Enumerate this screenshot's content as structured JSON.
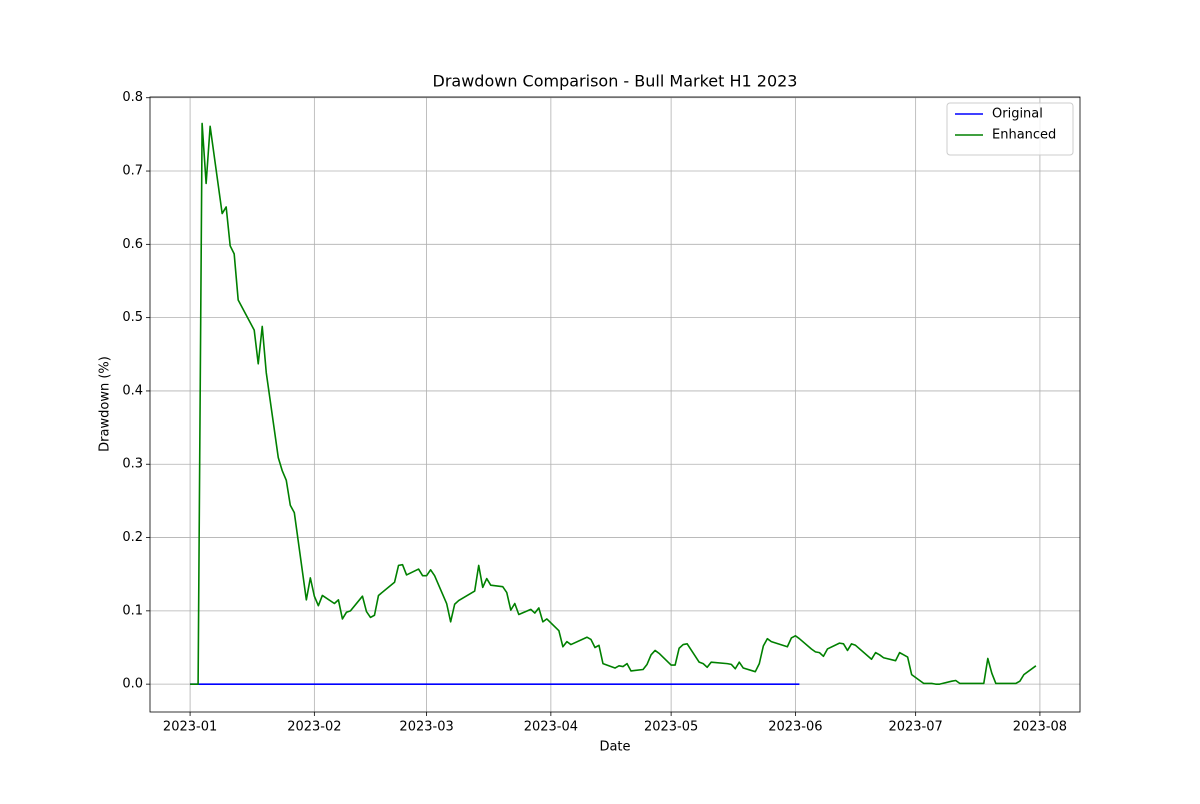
{
  "chart_data": {
    "type": "line",
    "title": "Drawdown Comparison - Bull Market H1 2023",
    "xlabel": "Date",
    "ylabel": "Drawdown (%)",
    "grid": true,
    "legend": "upper right",
    "xlim": [
      "2022-12-22",
      "2023-08-11"
    ],
    "xticks": [
      {
        "value": "2023-01-01",
        "label": "2023-01"
      },
      {
        "value": "2023-02-01",
        "label": "2023-02"
      },
      {
        "value": "2023-03-01",
        "label": "2023-03"
      },
      {
        "value": "2023-04-01",
        "label": "2023-04"
      },
      {
        "value": "2023-05-01",
        "label": "2023-05"
      },
      {
        "value": "2023-06-01",
        "label": "2023-06"
      },
      {
        "value": "2023-07-01",
        "label": "2023-07"
      },
      {
        "value": "2023-08-01",
        "label": "2023-08"
      }
    ],
    "ylim": [
      -0.038,
      0.801
    ],
    "yticks": [
      {
        "value": 0,
        "label": "0.0"
      },
      0.1,
      0.2,
      0.3,
      0.4,
      0.5,
      0.6,
      0.7,
      0.8
    ],
    "x": [
      "2023-01-01",
      "2023-01-03",
      "2023-01-04",
      "2023-01-05",
      "2023-01-06",
      "2023-01-09",
      "2023-01-10",
      "2023-01-11",
      "2023-01-12",
      "2023-01-13",
      "2023-01-17",
      "2023-01-18",
      "2023-01-19",
      "2023-01-20",
      "2023-01-23",
      "2023-01-24",
      "2023-01-25",
      "2023-01-26",
      "2023-01-27",
      "2023-01-30",
      "2023-01-31",
      "2023-02-01",
      "2023-02-02",
      "2023-02-03",
      "2023-02-06",
      "2023-02-07",
      "2023-02-08",
      "2023-02-09",
      "2023-02-10",
      "2023-02-13",
      "2023-02-14",
      "2023-02-15",
      "2023-02-16",
      "2023-02-17",
      "2023-02-21",
      "2023-02-22",
      "2023-02-23",
      "2023-02-24",
      "2023-02-27",
      "2023-02-28",
      "2023-03-01",
      "2023-03-02",
      "2023-03-03",
      "2023-03-06",
      "2023-03-07",
      "2023-03-08",
      "2023-03-09",
      "2023-03-13",
      "2023-03-14",
      "2023-03-15",
      "2023-03-16",
      "2023-03-17",
      "2023-03-20",
      "2023-03-21",
      "2023-03-22",
      "2023-03-23",
      "2023-03-24",
      "2023-03-27",
      "2023-03-28",
      "2023-03-29",
      "2023-03-30",
      "2023-03-31",
      "2023-04-03",
      "2023-04-04",
      "2023-04-05",
      "2023-04-06",
      "2023-04-10",
      "2023-04-11",
      "2023-04-12",
      "2023-04-13",
      "2023-04-14",
      "2023-04-17",
      "2023-04-18",
      "2023-04-19",
      "2023-04-20",
      "2023-04-21",
      "2023-04-24",
      "2023-04-25",
      "2023-04-26",
      "2023-04-27",
      "2023-04-28",
      "2023-05-01",
      "2023-05-02",
      "2023-05-03",
      "2023-05-04",
      "2023-05-05",
      "2023-05-08",
      "2023-05-09",
      "2023-05-10",
      "2023-05-11",
      "2023-05-15",
      "2023-05-16",
      "2023-05-17",
      "2023-05-18",
      "2023-05-19",
      "2023-05-22",
      "2023-05-23",
      "2023-05-24",
      "2023-05-25",
      "2023-05-26",
      "2023-05-30",
      "2023-05-31",
      "2023-06-01",
      "2023-06-02",
      "2023-06-05",
      "2023-06-06",
      "2023-06-07",
      "2023-06-08",
      "2023-06-09",
      "2023-06-12",
      "2023-06-13",
      "2023-06-14",
      "2023-06-15",
      "2023-06-16",
      "2023-06-20",
      "2023-06-21",
      "2023-06-22",
      "2023-06-23",
      "2023-06-26",
      "2023-06-27",
      "2023-06-28",
      "2023-06-29",
      "2023-06-30",
      "2023-07-03",
      "2023-07-05",
      "2023-07-06",
      "2023-07-07",
      "2023-07-10",
      "2023-07-11",
      "2023-07-12",
      "2023-07-13",
      "2023-07-14",
      "2023-07-17",
      "2023-07-18",
      "2023-07-19",
      "2023-07-20",
      "2023-07-21",
      "2023-07-24",
      "2023-07-25",
      "2023-07-26",
      "2023-07-27",
      "2023-07-28",
      "2023-07-31"
    ],
    "series": [
      {
        "name": "Original",
        "color": "#0000ff",
        "values": [
          0,
          0,
          0,
          0,
          0,
          0,
          0,
          0,
          0,
          0,
          0,
          0,
          0,
          0,
          0,
          0,
          0,
          0,
          0,
          0,
          0,
          0,
          0,
          0,
          0,
          0,
          0,
          0,
          0,
          0,
          0,
          0,
          0,
          0,
          0,
          0,
          0,
          0,
          0,
          0,
          0,
          0,
          0,
          0,
          0,
          0,
          0,
          0,
          0,
          0,
          0,
          0,
          0,
          0,
          0,
          0,
          0,
          0,
          0,
          0,
          0,
          0,
          0,
          0,
          0,
          0,
          0,
          0,
          0,
          0,
          0,
          0,
          0,
          0,
          0,
          0,
          0,
          0,
          0,
          0,
          0,
          0,
          0,
          0,
          0,
          0,
          0,
          0,
          0,
          0,
          0,
          0,
          0,
          0,
          0,
          0,
          0,
          0,
          0,
          0,
          0,
          0,
          0,
          0,
          null,
          null,
          null,
          null,
          null,
          null,
          null,
          null,
          null,
          null,
          null,
          null,
          null,
          null,
          null,
          null,
          null,
          null,
          null,
          null,
          null,
          null,
          null,
          null,
          null,
          null,
          null,
          null,
          null,
          null,
          null,
          null,
          null,
          null,
          null,
          null,
          null,
          null,
          null
        ]
      },
      {
        "name": "Enhanced",
        "color": "#008000",
        "values": [
          0,
          0,
          0.765,
          0.683,
          0.761,
          0.642,
          0.651,
          0.598,
          0.587,
          0.524,
          0.483,
          0.437,
          0.488,
          0.425,
          0.309,
          0.291,
          0.278,
          0.244,
          0.234,
          0.115,
          0.145,
          0.12,
          0.107,
          0.121,
          0.11,
          0.115,
          0.089,
          0.098,
          0.1,
          0.12,
          0.099,
          0.091,
          0.094,
          0.121,
          0.139,
          0.162,
          0.163,
          0.149,
          0.157,
          0.148,
          0.148,
          0.156,
          0.148,
          0.11,
          0.085,
          0.109,
          0.114,
          0.127,
          0.162,
          0.132,
          0.144,
          0.135,
          0.133,
          0.125,
          0.101,
          0.11,
          0.095,
          0.102,
          0.097,
          0.104,
          0.085,
          0.089,
          0.073,
          0.051,
          0.058,
          0.054,
          0.064,
          0.061,
          0.05,
          0.053,
          0.028,
          0.022,
          0.025,
          0.024,
          0.028,
          0.018,
          0.02,
          0.027,
          0.04,
          0.046,
          0.042,
          0.026,
          0.026,
          0.049,
          0.054,
          0.055,
          0.03,
          0.028,
          0.023,
          0.03,
          0.028,
          0.027,
          0.021,
          0.03,
          0.022,
          0.017,
          0.028,
          0.052,
          0.062,
          0.058,
          0.051,
          0.063,
          0.066,
          0.062,
          0.048,
          0.044,
          0.043,
          0.038,
          0.048,
          0.056,
          0.055,
          0.046,
          0.055,
          0.053,
          0.034,
          0.043,
          0.04,
          0.036,
          0.032,
          0.043,
          0.04,
          0.037,
          0.013,
          0.001,
          0.001,
          0,
          0,
          0.004,
          0.005,
          0.001,
          0.001,
          0.001,
          0.001,
          0.001,
          0.035,
          0.015,
          0.001,
          0.001,
          0.001,
          0.001,
          0.004,
          0.013,
          0.025
        ]
      }
    ]
  }
}
